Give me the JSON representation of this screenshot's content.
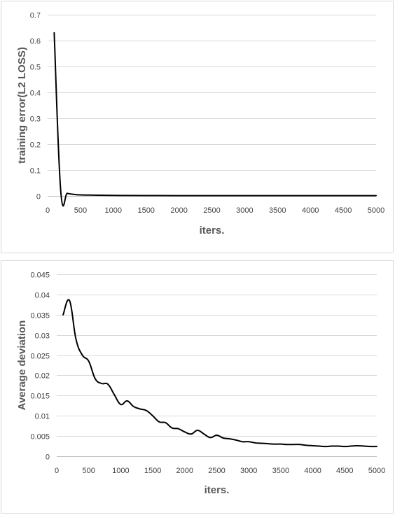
{
  "chart_data": [
    {
      "type": "line",
      "title": "",
      "xlabel": "iters.",
      "ylabel": "training error(L2 LOSS)",
      "xlim": [
        0,
        5000
      ],
      "ylim": [
        0,
        0.7
      ],
      "x_ticks": [
        0,
        500,
        1000,
        1500,
        2000,
        2500,
        3000,
        3500,
        4000,
        4500,
        5000
      ],
      "y_ticks": [
        0,
        0.1,
        0.2,
        0.3,
        0.4,
        0.5,
        0.6,
        0.7
      ],
      "y_tick_labels": [
        "0",
        "0.1",
        "0.2",
        "0.3",
        "0.4",
        "0.5",
        "0.6",
        "0.7"
      ],
      "grid": true,
      "legend": "none",
      "color": "#000000",
      "series": [
        {
          "x": [
            100,
            200,
            300,
            400,
            500,
            700,
            1000,
            1500,
            2000,
            3000,
            4000,
            5000
          ],
          "values": [
            0.63,
            0.018,
            0.01,
            0.006,
            0.004,
            0.003,
            0.002,
            0.0015,
            0.001,
            0.001,
            0.001,
            0.001
          ]
        }
      ]
    },
    {
      "type": "line",
      "title": "",
      "xlabel": "iters.",
      "ylabel": "Average deviation",
      "xlim": [
        0,
        5000
      ],
      "ylim": [
        0,
        0.045
      ],
      "x_ticks": [
        0,
        500,
        1000,
        1500,
        2000,
        2500,
        3000,
        3500,
        4000,
        4500,
        5000
      ],
      "y_ticks": [
        0,
        0.005,
        0.01,
        0.015,
        0.02,
        0.025,
        0.03,
        0.035,
        0.04,
        0.045
      ],
      "y_tick_labels": [
        "0",
        "0.005",
        "0.01",
        "0.015",
        "0.02",
        "0.025",
        "0.03",
        "0.035",
        "0.04",
        "0.045"
      ],
      "grid": true,
      "legend": "none",
      "color": "#000000",
      "series": [
        {
          "x": [
            100,
            200,
            300,
            400,
            500,
            600,
            700,
            800,
            900,
            1000,
            1100,
            1200,
            1300,
            1400,
            1500,
            1600,
            1700,
            1800,
            1900,
            2000,
            2100,
            2200,
            2300,
            2400,
            2500,
            2600,
            2700,
            2800,
            2900,
            3000,
            3100,
            3200,
            3300,
            3400,
            3500,
            3600,
            3700,
            3800,
            3900,
            4000,
            4100,
            4200,
            4300,
            4400,
            4500,
            4600,
            4700,
            4800,
            4900,
            5000
          ],
          "values": [
            0.035,
            0.0385,
            0.029,
            0.025,
            0.0235,
            0.0192,
            0.018,
            0.0178,
            0.0152,
            0.0128,
            0.0137,
            0.0123,
            0.0117,
            0.0113,
            0.01,
            0.0085,
            0.0083,
            0.007,
            0.0068,
            0.006,
            0.0055,
            0.0064,
            0.0055,
            0.0046,
            0.0052,
            0.0045,
            0.0043,
            0.004,
            0.0036,
            0.0036,
            0.0033,
            0.0032,
            0.0031,
            0.003,
            0.003,
            0.0029,
            0.0029,
            0.0029,
            0.0027,
            0.0026,
            0.0025,
            0.0024,
            0.0025,
            0.0025,
            0.0024,
            0.0025,
            0.0026,
            0.0025,
            0.0024,
            0.0024
          ]
        }
      ]
    }
  ]
}
